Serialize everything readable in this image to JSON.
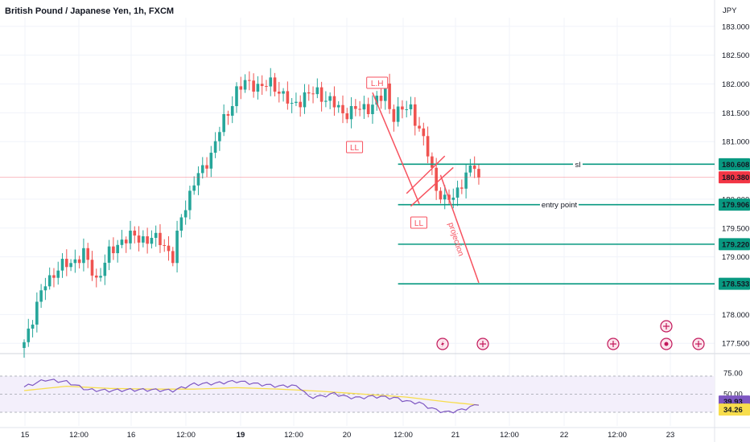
{
  "header": {
    "title": "British Pound / Japanese Yen, 1h, FXCM",
    "currency": "JPY"
  },
  "chart_data": {
    "type": "candlestick",
    "symbol": "British Pound / Japanese Yen",
    "timeframe": "1h",
    "source": "FXCM",
    "ylim": [
      177.35,
      183.15
    ],
    "price_ticks": [
      "183.000",
      "182.500",
      "182.000",
      "181.500",
      "181.000",
      "180.000",
      "179.500",
      "179.000",
      "178.000",
      "177.500"
    ],
    "price_tick_values": [
      183.0,
      182.5,
      182.0,
      181.5,
      181.0,
      180.0,
      179.5,
      179.0,
      178.0,
      177.5
    ],
    "x_ticks": [
      "15",
      "12:00",
      "16",
      "12:00",
      "19",
      "12:00",
      "20",
      "12:00",
      "21",
      "12:00",
      "22",
      "12:00",
      "23"
    ],
    "x_tick_bold": [
      false,
      false,
      false,
      false,
      true,
      false,
      false,
      false,
      false,
      false,
      false,
      false,
      false
    ],
    "last_index": 130,
    "candle_keys": [
      [
        0,
        177.52
      ],
      [
        2,
        177.95
      ],
      [
        5,
        178.55
      ],
      [
        8,
        178.8
      ],
      [
        11,
        178.9
      ],
      [
        14,
        179.05
      ],
      [
        17,
        178.6
      ],
      [
        20,
        179.05
      ],
      [
        23,
        179.3
      ],
      [
        26,
        179.35
      ],
      [
        29,
        179.3
      ],
      [
        32,
        179.3
      ],
      [
        34,
        179.1
      ],
      [
        35,
        178.95
      ],
      [
        37,
        179.7
      ],
      [
        40,
        180.3
      ],
      [
        42,
        180.5
      ],
      [
        44,
        180.8
      ],
      [
        46,
        181.2
      ],
      [
        48,
        181.5
      ],
      [
        50,
        181.9
      ],
      [
        52,
        182.0
      ],
      [
        54,
        182.0
      ],
      [
        56,
        181.95
      ],
      [
        58,
        182.0
      ],
      [
        60,
        181.9
      ],
      [
        63,
        181.6
      ],
      [
        66,
        181.8
      ],
      [
        69,
        181.85
      ],
      [
        72,
        181.7
      ],
      [
        75,
        181.5
      ],
      [
        78,
        181.55
      ],
      [
        81,
        181.6
      ],
      [
        84,
        181.75
      ],
      [
        85,
        181.95
      ],
      [
        86,
        181.6
      ],
      [
        87,
        181.45
      ],
      [
        89,
        181.55
      ],
      [
        91,
        181.6
      ],
      [
        93,
        181.2
      ],
      [
        95,
        180.8
      ],
      [
        97,
        180.2
      ],
      [
        99,
        179.95
      ],
      [
        101,
        180.05
      ],
      [
        103,
        180.3
      ],
      [
        105,
        180.5
      ],
      [
        106,
        180.6
      ],
      [
        107,
        180.38
      ]
    ],
    "levels": [
      {
        "price": 180.608,
        "label": "180.608",
        "text": "sl"
      },
      {
        "price": 179.906,
        "label": "179.906",
        "text": "entry point"
      },
      {
        "price": 179.22,
        "label": "179.220",
        "text": ""
      },
      {
        "price": 178.533,
        "label": "178.533",
        "text": ""
      }
    ],
    "current_price": {
      "price": 180.38,
      "label": "180.380"
    },
    "annotations": {
      "lh": "L.H",
      "ll1": "LL",
      "ll2": "LL",
      "projection": "projection"
    },
    "rsi": {
      "levels": [
        "75.00",
        "50.00"
      ],
      "rsi_value": "39.93",
      "ma_value": "34.26",
      "rsi_keys": [
        [
          0,
          60
        ],
        [
          5,
          70
        ],
        [
          10,
          67
        ],
        [
          15,
          56
        ],
        [
          20,
          55
        ],
        [
          25,
          56
        ],
        [
          30,
          56
        ],
        [
          35,
          55
        ],
        [
          40,
          64
        ],
        [
          45,
          65
        ],
        [
          50,
          68
        ],
        [
          55,
          64
        ],
        [
          60,
          61
        ],
        [
          63,
          62
        ],
        [
          65,
          59
        ],
        [
          67,
          46
        ],
        [
          70,
          47
        ],
        [
          73,
          51
        ],
        [
          76,
          46
        ],
        [
          79,
          45
        ],
        [
          82,
          47
        ],
        [
          85,
          46
        ],
        [
          88,
          44
        ],
        [
          90,
          40
        ],
        [
          93,
          38
        ],
        [
          96,
          30
        ],
        [
          99,
          25
        ],
        [
          102,
          27
        ],
        [
          105,
          32
        ],
        [
          107,
          37
        ]
      ],
      "ma_keys": [
        [
          0,
          55
        ],
        [
          10,
          61
        ],
        [
          20,
          58
        ],
        [
          30,
          57
        ],
        [
          40,
          57
        ],
        [
          50,
          59
        ],
        [
          60,
          57
        ],
        [
          70,
          54
        ],
        [
          80,
          50
        ],
        [
          90,
          46
        ],
        [
          100,
          39
        ],
        [
          107,
          35
        ]
      ]
    },
    "event_icons": [
      "lightning-event-icon",
      "uk-flag-event-icon",
      "uk-flag-event-icon",
      "uk-flag-event-icon",
      "uk-flag-event-icon",
      "uk-flag-event-icon"
    ],
    "colors": {
      "up": "#26a69a",
      "down": "#ef5350",
      "levels": "#089981",
      "current": "#f23645",
      "annotation": "#f7525f",
      "rsi_line": "#7e57c2",
      "rsi_ma": "#f7dd4c",
      "rsi_band": "#f3effb",
      "event_icon": "#c2185b"
    }
  }
}
